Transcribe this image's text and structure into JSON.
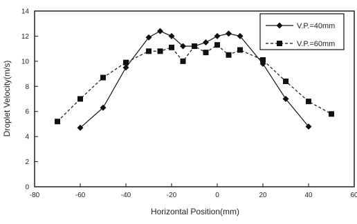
{
  "chart_data": {
    "type": "line",
    "title": "",
    "xlabel": "Horizontal Position(mm)",
    "ylabel": "Droplet Velocity(m/s)",
    "xlim": [
      -80,
      60
    ],
    "ylim": [
      0,
      14
    ],
    "xticks": [
      -80,
      -60,
      -40,
      -20,
      0,
      20,
      40,
      60
    ],
    "yticks": [
      0,
      2,
      4,
      6,
      8,
      10,
      12,
      14
    ],
    "xtick_labels": [
      "-80",
      "-60",
      "-40",
      "-20",
      "0",
      "20",
      "40",
      "60"
    ],
    "ytick_labels": [
      "0",
      "2",
      "4",
      "6",
      "8",
      "10",
      "12",
      "14"
    ],
    "grid": false,
    "legend_position": "top-right",
    "series": [
      {
        "name": "V.P.=40mm",
        "marker": "diamond",
        "line_style": "solid",
        "color": "#111111",
        "x": [
          -60,
          -50,
          -40,
          -30,
          -25,
          -20,
          -15,
          -10,
          -5,
          0,
          5,
          10,
          20,
          30,
          40
        ],
        "y": [
          4.7,
          6.3,
          9.5,
          11.9,
          12.4,
          12.0,
          11.2,
          11.2,
          11.5,
          12.0,
          12.2,
          12.0,
          9.8,
          7.0,
          4.8
        ]
      },
      {
        "name": "V.P.=60mm",
        "marker": "square",
        "line_style": "dashed",
        "color": "#111111",
        "x": [
          -70,
          -60,
          -50,
          -40,
          -30,
          -25,
          -20,
          -15,
          -10,
          -5,
          0,
          5,
          10,
          20,
          30,
          40,
          50
        ],
        "y": [
          5.2,
          7.0,
          8.7,
          9.9,
          10.8,
          10.8,
          11.1,
          10.0,
          11.2,
          10.7,
          11.3,
          10.5,
          10.9,
          10.1,
          8.4,
          6.8,
          5.8
        ]
      }
    ]
  }
}
